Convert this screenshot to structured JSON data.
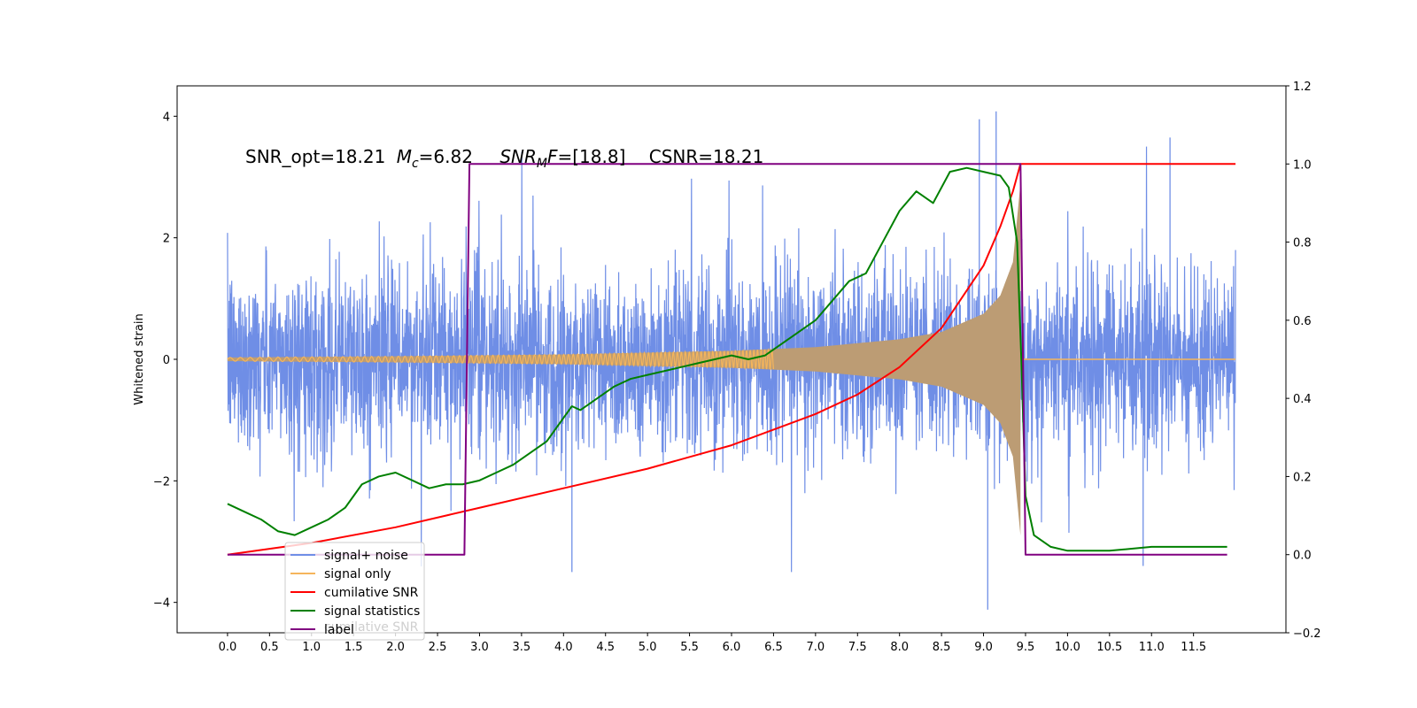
{
  "chart_data": {
    "type": "line",
    "title": "",
    "annotation": {
      "snr_opt": "SNR_opt=18.21",
      "mc_symbol": "M",
      "mc_sub": "c",
      "mc_value": "=6.82",
      "snrmf_symbol": "SNR",
      "snrmf_sub": "M",
      "snrmf_tail": "F",
      "snrmf_value": "=[18.8]",
      "csnr": "CSNR=18.21"
    },
    "xlabel": "",
    "ylabel_left": "Whitened strain",
    "ylabel_right": "",
    "xlim": [
      -0.6,
      12.6
    ],
    "ylim_left": [
      -4.5,
      4.5
    ],
    "ylim_right": [
      -0.2,
      1.2
    ],
    "x_ticks": [
      "0.0",
      "0.5",
      "1.0",
      "1.5",
      "2.0",
      "2.5",
      "3.0",
      "3.5",
      "4.0",
      "4.5",
      "5.0",
      "5.5",
      "6.0",
      "6.5",
      "7.0",
      "7.5",
      "8.0",
      "8.5",
      "9.0",
      "9.5",
      "10.0",
      "10.5",
      "11.0",
      "11.5"
    ],
    "y_ticks_left": [
      "−4",
      "−2",
      "0",
      "2",
      "4"
    ],
    "y_ticks_right": [
      "−0.2",
      "0.0",
      "0.2",
      "0.4",
      "0.6",
      "0.8",
      "1.0",
      "1.2"
    ],
    "signal_end_time": 9.44,
    "label_on_interval": [
      2.85,
      9.44
    ],
    "series": [
      {
        "name": "signal+ noise",
        "color": "#6f8ee6",
        "axis": "left",
        "kind": "noise",
        "x_range": [
          0.0,
          12.0
        ],
        "typical_band": [
          -2.0,
          2.0
        ],
        "extremes": [
          4.08,
          -4.12
        ]
      },
      {
        "name": "signal only",
        "color": "#f5b55b",
        "axis": "left",
        "kind": "chirp",
        "x_range": [
          0.0,
          12.0
        ],
        "envelope": [
          [
            0.0,
            0.03
          ],
          [
            2.0,
            0.05
          ],
          [
            4.0,
            0.08
          ],
          [
            6.0,
            0.14
          ],
          [
            7.0,
            0.2
          ],
          [
            8.0,
            0.33
          ],
          [
            8.5,
            0.45
          ],
          [
            9.0,
            0.75
          ],
          [
            9.2,
            1.05
          ],
          [
            9.35,
            1.6
          ],
          [
            9.44,
            2.9
          ]
        ]
      },
      {
        "name": "cumilative SNR",
        "color": "#ff0000",
        "axis": "right",
        "x": [
          0.0,
          1.0,
          2.0,
          3.0,
          4.0,
          5.0,
          6.0,
          7.0,
          7.5,
          8.0,
          8.5,
          9.0,
          9.2,
          9.35,
          9.44,
          9.5,
          12.0
        ],
        "y": [
          0.0,
          0.03,
          0.07,
          0.12,
          0.17,
          0.22,
          0.28,
          0.36,
          0.41,
          0.48,
          0.58,
          0.74,
          0.84,
          0.93,
          1.0,
          1.0,
          1.0
        ]
      },
      {
        "name": "signal statistics",
        "color": "#008000",
        "axis": "right",
        "x": [
          0.0,
          0.2,
          0.4,
          0.6,
          0.8,
          1.0,
          1.2,
          1.4,
          1.6,
          1.8,
          2.0,
          2.2,
          2.4,
          2.6,
          2.8,
          3.0,
          3.2,
          3.4,
          3.6,
          3.8,
          4.0,
          4.1,
          4.2,
          4.4,
          4.6,
          4.8,
          5.0,
          5.2,
          5.4,
          5.6,
          5.8,
          6.0,
          6.2,
          6.4,
          6.6,
          6.8,
          7.0,
          7.2,
          7.4,
          7.6,
          7.8,
          8.0,
          8.2,
          8.4,
          8.6,
          8.8,
          9.0,
          9.2,
          9.3,
          9.4,
          9.45,
          9.5,
          9.6,
          9.8,
          10.0,
          10.5,
          11.0,
          11.5,
          11.9
        ],
        "y": [
          0.13,
          0.11,
          0.09,
          0.06,
          0.05,
          0.07,
          0.09,
          0.12,
          0.18,
          0.2,
          0.21,
          0.19,
          0.17,
          0.18,
          0.18,
          0.19,
          0.21,
          0.23,
          0.26,
          0.29,
          0.35,
          0.38,
          0.37,
          0.4,
          0.43,
          0.45,
          0.46,
          0.47,
          0.48,
          0.49,
          0.5,
          0.51,
          0.5,
          0.51,
          0.54,
          0.57,
          0.6,
          0.65,
          0.7,
          0.72,
          0.8,
          0.88,
          0.93,
          0.9,
          0.98,
          0.99,
          0.98,
          0.97,
          0.94,
          0.8,
          0.5,
          0.15,
          0.05,
          0.02,
          0.01,
          0.01,
          0.02,
          0.02,
          0.02
        ]
      },
      {
        "name": "label",
        "color": "#800080",
        "axis": "right",
        "x": [
          0.0,
          2.82,
          2.88,
          9.44,
          9.5,
          11.9
        ],
        "y": [
          0.0,
          0.0,
          1.0,
          1.0,
          0.0,
          0.0
        ]
      }
    ],
    "legend": {
      "placement": "lower-left",
      "entries": [
        "signal+ noise",
        "signal only",
        "cumilative SNR",
        "signal statistics",
        "label"
      ],
      "ghost_text": "cumilative SNR"
    },
    "grid": false
  }
}
